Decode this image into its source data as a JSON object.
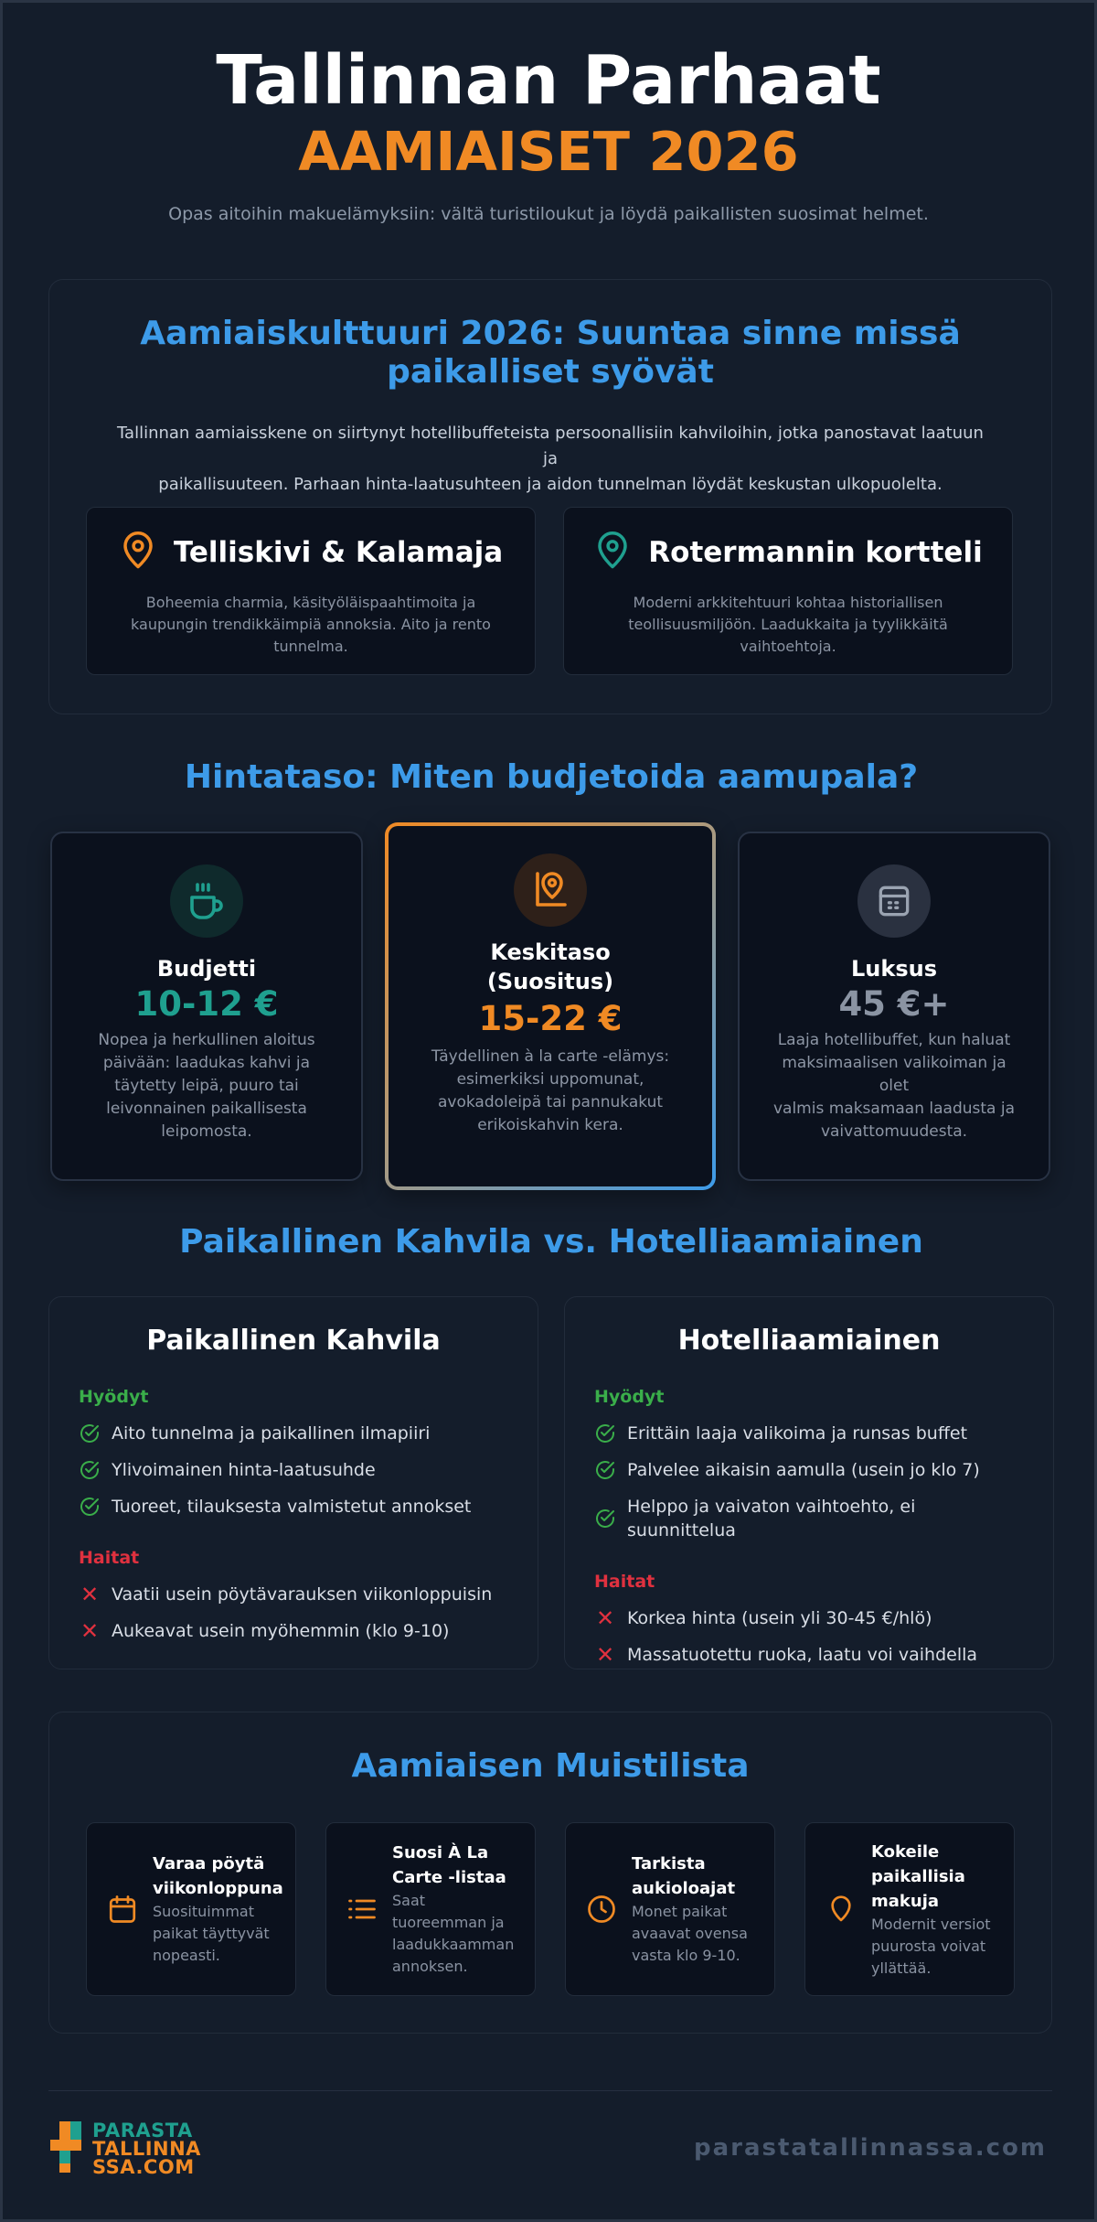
{
  "header": {
    "title": "Tallinnan Parhaat",
    "subtitle": "AAMIAISET 2026",
    "description": "Opas aitoihin makuelämyksiin: vältä turistiloukut ja löydä paikallisten suosimat helmet."
  },
  "culture": {
    "title_line1": "Aamiaiskulttuuri 2026: Suuntaa sinne missä",
    "title_line2": "paikalliset syövät",
    "text_line1": "Tallinnan aamiaisskene on siirtynyt hotellibuffeteista persoonallisiin kahviloihin, jotka panostavat laatuun ja",
    "text_line2": "paikallisuuteen. Parhaan hinta-laatusuhteen ja aidon tunnelman löydät keskustan ulkopuolelta.",
    "areas": [
      {
        "name": "Telliskivi & Kalamaja",
        "icon": "map-pin-icon",
        "color": "#f08a24",
        "line1": "Boheemia charmia, käsityöläispaahtimoita ja",
        "line2": "kaupungin trendikkäimpiä annoksia. Aito ja rento",
        "line3": "tunnelma."
      },
      {
        "name": "Rotermannin kortteli",
        "icon": "map-pin-icon",
        "color": "#1fa08f",
        "line1": "Moderni arkkitehtuuri kohtaa historiallisen",
        "line2": "teollisuusmiljöön. Laadukkaita ja tyylikkäitä",
        "line3": "vaihtoehtoja."
      }
    ]
  },
  "pricing": {
    "title": "Hintataso: Miten budjetoida aamupala?",
    "tiers": [
      {
        "name": "Budjetti",
        "price": "10-12 €",
        "icon": "coffee-cup-icon",
        "color": "#1fa08f",
        "lines": [
          "Nopea ja herkullinen aloitus",
          "päivään: laadukas kahvi ja",
          "täytetty leipä, puuro tai",
          "leivonnainen paikallisesta",
          "leipomosta."
        ]
      },
      {
        "name_line1": "Keskitaso",
        "name_line2": "(Suositus)",
        "price": "15-22 €",
        "icon": "location-pin-icon",
        "color": "#f08a24",
        "lines": [
          "Täydellinen à la carte -elämys:",
          "esimerkiksi uppomunat,",
          "avokadoleipä tai pannukakut",
          "erikoiskahvin kera."
        ]
      },
      {
        "name": "Luksus",
        "price": "45 €+",
        "icon": "calendar-icon",
        "color": "#9aa3b1",
        "lines": [
          "Laaja hotellibuffet, kun haluat",
          "maksimaalisen valikoiman ja olet",
          "valmis maksamaan laadusta ja",
          "vaivattomuudesta."
        ]
      }
    ]
  },
  "comparison": {
    "title": "Paikallinen Kahvila vs. Hotelliaamiainen",
    "pros_label": "Hyödyt",
    "cons_label": "Haitat",
    "pros_color": "#3aae4a",
    "cons_color": "#e0313f",
    "columns": [
      {
        "title": "Paikallinen Kahvila",
        "pros": [
          "Aito tunnelma ja paikallinen ilmapiiri",
          "Ylivoimainen hinta-laatusuhde",
          "Tuoreet, tilauksesta valmistetut annokset"
        ],
        "cons": [
          "Vaatii usein pöytävarauksen viikonloppuisin",
          "Aukeavat usein myöhemmin (klo 9-10)"
        ]
      },
      {
        "title": "Hotelliaamiainen",
        "pros": [
          "Erittäin laaja valikoima ja runsas buffet",
          "Palvelee aikaisin aamulla (usein jo klo 7)",
          "Helppo ja vaivaton vaihtoehto, ei suunnittelua"
        ],
        "cons": [
          "Korkea hinta (usein yli 30-45 €/hlö)",
          "Massatuotettu ruoka, laatu voi vaihdella"
        ]
      }
    ]
  },
  "checklist": {
    "title": "Aamiaisen Muistilista",
    "accent": "#f08a24",
    "items": [
      {
        "icon": "calendar-icon",
        "title_lines": [
          "Varaa pöytä",
          "viikonloppuna"
        ],
        "text_lines": [
          "Suosituimmat",
          "paikat täyttyvät",
          "nopeasti."
        ]
      },
      {
        "icon": "list-icon",
        "title_lines": [
          "Suosi À La",
          "Carte -listaa"
        ],
        "text_lines": [
          "Saat",
          "tuoreemman ja",
          "laadukkaamman",
          "annoksen."
        ]
      },
      {
        "icon": "clock-icon",
        "title_lines": [
          "Tarkista",
          "aukioloajat"
        ],
        "text_lines": [
          "Monet paikat",
          "avaavat ovensa",
          "vasta klo 9-10."
        ]
      },
      {
        "icon": "map-pin-icon",
        "title_lines": [
          "Kokeile",
          "paikallisia",
          "makuja"
        ],
        "text_lines": [
          "Modernit versiot",
          "puurosta voivat",
          "yllättää."
        ]
      }
    ]
  },
  "footer": {
    "logo_line1": "PARASTA",
    "logo_line2": "TALLINNA",
    "logo_line3": "SSA.COM",
    "url": "parastatallinnassa.com"
  }
}
